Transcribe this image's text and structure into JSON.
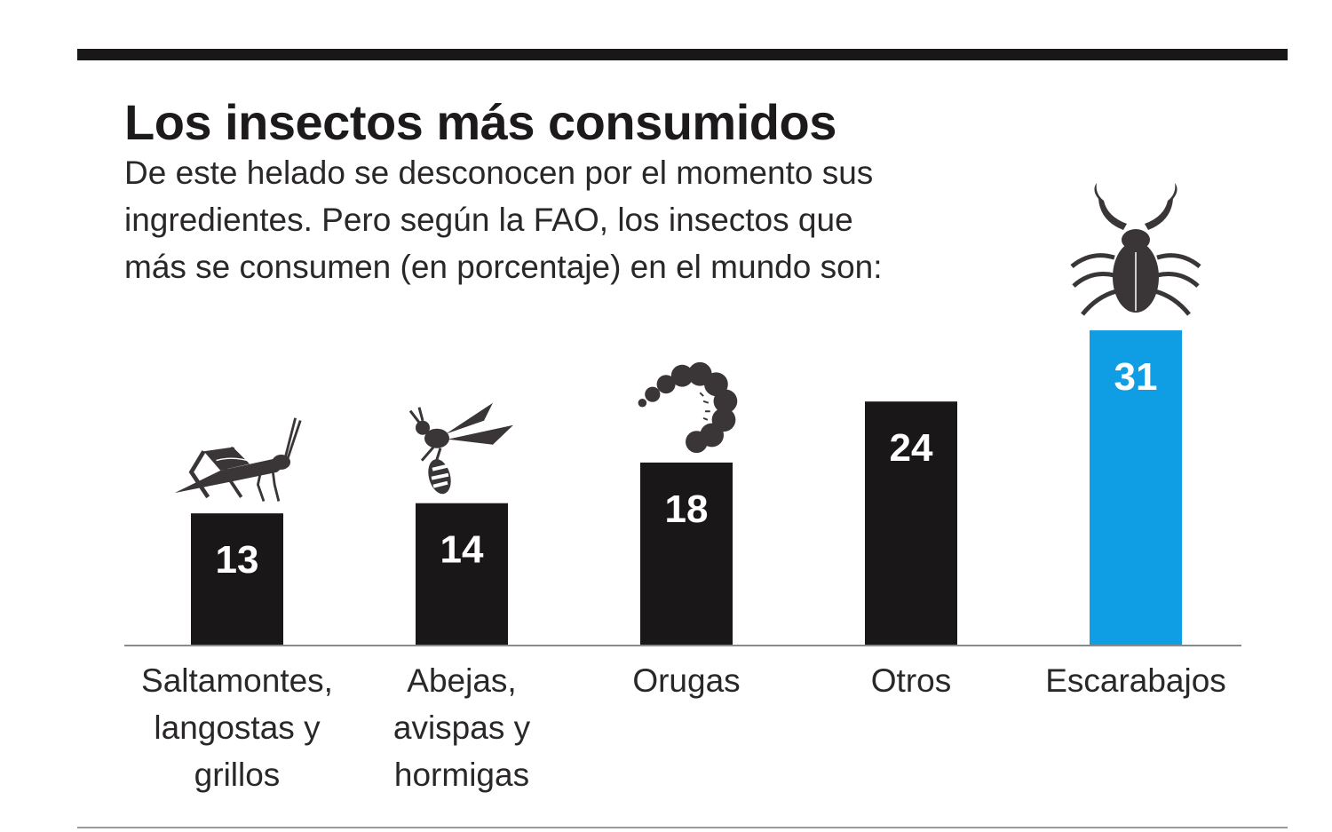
{
  "chart_data": {
    "type": "bar",
    "title": "Los insectos más consumidos",
    "subtitle_lines": [
      "De este helado se desconocen por el momento sus",
      "ingredientes. Pero según la FAO, los insectos que",
      "más se consumen (en porcentaje) en el mundo son:"
    ],
    "categories": [
      [
        "Saltamontes,",
        "langostas y",
        "grillos"
      ],
      [
        "Abejas,",
        "avispas y",
        "hormigas"
      ],
      [
        "Orugas"
      ],
      [
        "Otros"
      ],
      [
        "Escarabajos"
      ]
    ],
    "values": [
      13,
      14,
      18,
      24,
      31
    ],
    "value_labels": [
      "13",
      "14",
      "18",
      "24",
      "31"
    ],
    "bar_colors": [
      "#1a1718",
      "#1a1718",
      "#1a1718",
      "#1a1718",
      "#0f9ee3"
    ],
    "icons": [
      "grasshopper-icon",
      "wasp-icon",
      "caterpillar-icon",
      "",
      "beetle-icon"
    ],
    "xlabel": "",
    "ylabel": "",
    "ylim": [
      0,
      31
    ]
  }
}
